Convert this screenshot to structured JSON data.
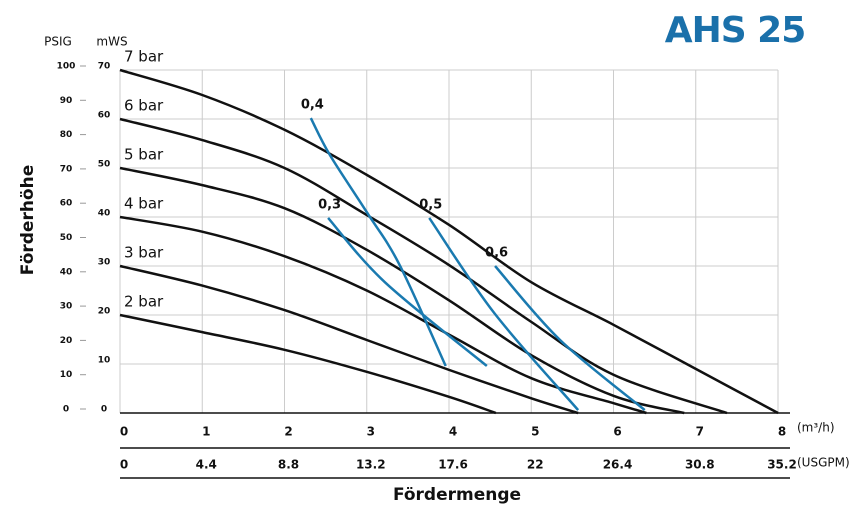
{
  "chart_data": {
    "type": "line",
    "title": "AHS 25",
    "x_label": "Fördermenge",
    "y_label": "Förderhöhe",
    "x_unit": "(m³/h)",
    "x2_unit": "(USGPM)",
    "y_unit": "mWS",
    "y2_unit": "PSIG",
    "xlim": [
      0,
      8
    ],
    "xticks": [
      0,
      1,
      2,
      3,
      4,
      5,
      6,
      7,
      8
    ],
    "x2lim": [
      0,
      35.2
    ],
    "x2ticks": [
      0,
      4.4,
      8.8,
      13.2,
      17.6,
      22,
      26.4,
      30.8,
      35.2
    ],
    "ylim": [
      0,
      70
    ],
    "yticks": [
      0,
      10,
      20,
      30,
      40,
      50,
      60,
      70
    ],
    "y2lim": [
      0,
      100
    ],
    "y2ticks": [
      0,
      10,
      20,
      30,
      40,
      50,
      60,
      70,
      80,
      90,
      100
    ],
    "grid": true,
    "series": [
      {
        "name": "7 bar",
        "color": "#111111",
        "x": [
          0,
          1,
          2,
          3,
          4,
          5,
          6,
          7,
          8
        ],
        "values": [
          70,
          64.9,
          57.8,
          48.6,
          38.4,
          26.7,
          18,
          9,
          0
        ]
      },
      {
        "name": "6 bar",
        "color": "#111111",
        "x": [
          0,
          1,
          2,
          3,
          4,
          5,
          6,
          7.38
        ],
        "values": [
          60,
          55.7,
          50,
          40.4,
          30.2,
          18.6,
          7.8,
          0
        ]
      },
      {
        "name": "5 bar",
        "color": "#111111",
        "x": [
          0,
          1,
          2,
          3,
          4,
          5,
          6,
          6.86
        ],
        "values": [
          50,
          46.5,
          41.8,
          33.3,
          23,
          11.8,
          3.5,
          0
        ]
      },
      {
        "name": "4 bar",
        "color": "#111111",
        "x": [
          0,
          1,
          2,
          3,
          4,
          5,
          6,
          6.4
        ],
        "values": [
          40,
          37,
          32,
          25,
          16,
          7.1,
          2,
          0
        ]
      },
      {
        "name": "3 bar",
        "color": "#111111",
        "x": [
          0,
          1,
          2,
          3,
          4,
          5,
          5.57
        ],
        "values": [
          30,
          26,
          21,
          14.9,
          8.8,
          3,
          0
        ]
      },
      {
        "name": "2 bar",
        "color": "#111111",
        "x": [
          0,
          1,
          2,
          3,
          4,
          4.57
        ],
        "values": [
          20,
          16.5,
          12.9,
          8.4,
          3.3,
          0
        ]
      },
      {
        "name": "0,4",
        "color": "#1a7ab0",
        "x": [
          2.32,
          2.55,
          3,
          3.4,
          3.96
        ],
        "values": [
          60.2,
          52.7,
          41,
          30.2,
          9.6
        ]
      },
      {
        "name": "0,3",
        "color": "#1a7ab0",
        "x": [
          2.53,
          3.22,
          4.46
        ],
        "values": [
          39.8,
          26.7,
          9.6
        ]
      },
      {
        "name": "0,5",
        "color": "#1a7ab0",
        "x": [
          3.76,
          4.55,
          5.57
        ],
        "values": [
          39.8,
          20.4,
          0.6
        ]
      },
      {
        "name": "0,6",
        "color": "#1a7ab0",
        "x": [
          4.56,
          5.35,
          6.38
        ],
        "values": [
          30,
          14.9,
          0.6
        ]
      }
    ]
  }
}
